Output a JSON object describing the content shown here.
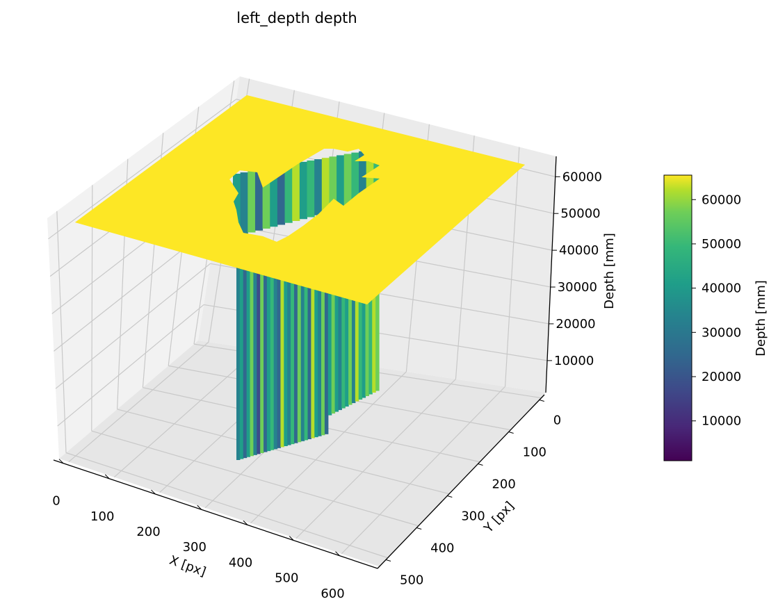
{
  "chart_data": {
    "type": "surface3d",
    "title": "left_depth depth",
    "xlabel": "X [px]",
    "ylabel": "Y [px]",
    "zlabel": "Depth [mm]",
    "xlim": [
      0,
      640
    ],
    "ylim": [
      0,
      500
    ],
    "zlim": [
      0,
      65535
    ],
    "x_ticks": [
      "0",
      "100",
      "200",
      "300",
      "400",
      "500",
      "600"
    ],
    "y_ticks": [
      "0",
      "100",
      "200",
      "300",
      "400",
      "500"
    ],
    "z_ticks": [
      "10000",
      "20000",
      "30000",
      "40000",
      "50000",
      "60000"
    ],
    "surface": {
      "background_depth": 65535,
      "hole_region_note_values": "depth varies roughly between 15000 and 60000 inside hole",
      "colormap": "viridis"
    },
    "colorbar": {
      "label": "Depth [mm]",
      "range": [
        1000,
        65535
      ],
      "ticks": [
        "10000",
        "20000",
        "30000",
        "40000",
        "50000",
        "60000"
      ],
      "colormap": "viridis"
    },
    "grid": true
  }
}
